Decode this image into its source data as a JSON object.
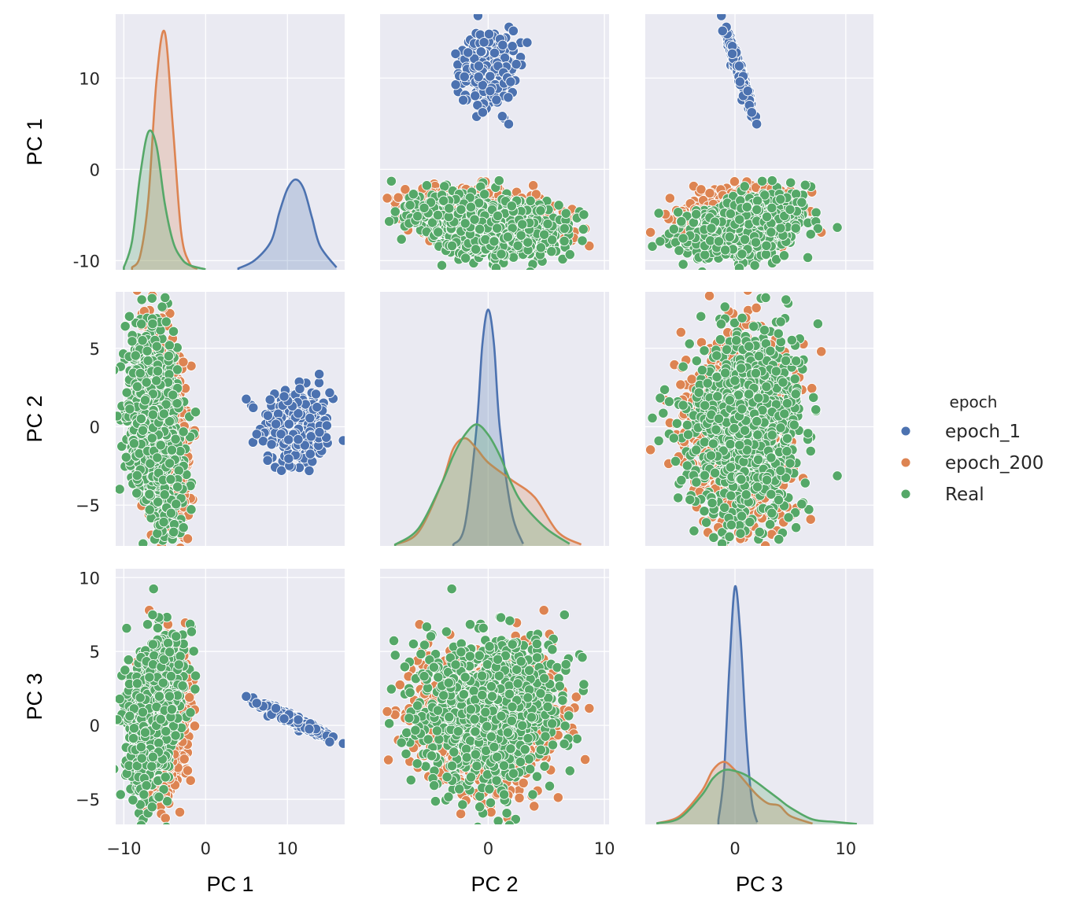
{
  "chart_data": {
    "type": "scatter",
    "subtype": "pairplot",
    "variables": [
      "PC 1",
      "PC 2",
      "PC 3"
    ],
    "axis_ticks": {
      "PC 1": {
        "values": [
          -10,
          0,
          10
        ],
        "labels": [
          "-10",
          "0",
          "10"
        ],
        "range": [
          -11,
          17
        ]
      },
      "PC 2": {
        "values": [
          -5,
          0,
          5
        ],
        "labels": [
          "−5",
          "0",
          "5"
        ],
        "range": [
          -7.6,
          8.6
        ]
      },
      "PC 3": {
        "values": [
          -5,
          0,
          5,
          10
        ],
        "labels": [
          "−5",
          "0",
          "5",
          "10"
        ],
        "range": [
          -6.7,
          10.6
        ]
      }
    },
    "x_axis_ticks": {
      "PC 1": {
        "values": [
          -10,
          0,
          10
        ],
        "labels": [
          "−10",
          "0",
          "10"
        ]
      },
      "PC 2": {
        "values": [
          0,
          10
        ],
        "labels": [
          "0",
          "10"
        ],
        "range": [
          -9.3,
          10.4
        ]
      },
      "PC 3": {
        "values": [
          0,
          10
        ],
        "labels": [
          "0",
          "10"
        ],
        "range": [
          -8.1,
          12.5
        ]
      }
    },
    "legend": {
      "title": "epoch",
      "placement": "right",
      "entries": [
        {
          "label": "epoch_1",
          "color": "#4c72b0"
        },
        {
          "label": "epoch_200",
          "color": "#dd8452"
        },
        {
          "label": "Real",
          "color": "#55a868"
        }
      ]
    },
    "series": [
      {
        "name": "epoch_1",
        "color": "#4c72b0",
        "count": 300,
        "mean": [
          11,
          0,
          0.3
        ],
        "sd": [
          2.1,
          1.2,
          0.7
        ],
        "kde": {
          "PC 1": {
            "x": [
              4,
              6,
              8,
              9,
              10,
              11,
              12,
              13,
              14,
              16
            ],
            "density": [
              0.003,
              0.02,
              0.06,
              0.12,
              0.17,
              0.19,
              0.17,
              0.11,
              0.05,
              0.005
            ]
          },
          "PC 2": {
            "x": [
              -3,
              -2,
              -1,
              -0.5,
              0,
              0.5,
              1,
              2,
              3
            ],
            "density": [
              0.002,
              0.03,
              0.17,
              0.29,
              0.34,
              0.29,
              0.17,
              0.05,
              0.003
            ]
          },
          "PC 3": {
            "x": [
              -1.5,
              -1,
              -0.5,
              0,
              0.5,
              1,
              1.5,
              2
            ],
            "density": [
              0.01,
              0.12,
              0.38,
              0.57,
              0.45,
              0.22,
              0.06,
              0.005
            ]
          }
        }
      },
      {
        "name": "epoch_200",
        "color": "#dd8452",
        "count": 1200,
        "mean": [
          -5.2,
          0,
          0
        ],
        "sd": [
          1.3,
          2.9,
          2.4
        ],
        "kde": {
          "PC 1": {
            "x": [
              -9,
              -8,
              -7,
              -6,
              -5,
              -4,
              -3,
              -2,
              -1
            ],
            "density": [
              0.005,
              0.03,
              0.15,
              0.4,
              0.5,
              0.3,
              0.08,
              0.015,
              0.002
            ]
          },
          "PC 2": {
            "x": [
              -8,
              -6,
              -4,
              -3,
              -2,
              -1,
              0,
              2,
              4,
              6,
              8
            ],
            "density": [
              0.002,
              0.02,
              0.09,
              0.14,
              0.155,
              0.14,
              0.12,
              0.095,
              0.07,
              0.02,
              0.002
            ]
          },
          "PC 3": {
            "x": [
              -7,
              -5,
              -3,
              -2,
              -1,
              0,
              1,
              2,
              3,
              4,
              5,
              7
            ],
            "density": [
              0.003,
              0.02,
              0.08,
              0.13,
              0.15,
              0.13,
              0.1,
              0.07,
              0.05,
              0.045,
              0.02,
              0.002
            ]
          }
        }
      },
      {
        "name": "Real",
        "color": "#55a868",
        "count": 1200,
        "mean": [
          -6.5,
          0,
          0.3
        ],
        "sd": [
          1.4,
          2.7,
          2.7
        ],
        "kde": {
          "PC 1": {
            "x": [
              -10,
              -9,
              -8,
              -7,
              -6,
              -5,
              -4,
              -3,
              -2,
              0
            ],
            "density": [
              0.005,
              0.06,
              0.2,
              0.29,
              0.26,
              0.14,
              0.06,
              0.025,
              0.01,
              0.001
            ]
          },
          "PC 2": {
            "x": [
              -8,
              -6,
              -4,
              -3,
              -2,
              -1,
              0,
              1,
              2,
              3,
              5,
              7
            ],
            "density": [
              0.002,
              0.025,
              0.09,
              0.13,
              0.16,
              0.175,
              0.16,
              0.13,
              0.09,
              0.06,
              0.025,
              0.003
            ]
          },
          "PC 3": {
            "x": [
              -7,
              -5,
              -3,
              -2,
              -1,
              0,
              1,
              2,
              3,
              4,
              5,
              7,
              9,
              11
            ],
            "density": [
              0.003,
              0.015,
              0.07,
              0.11,
              0.13,
              0.128,
              0.118,
              0.1,
              0.08,
              0.06,
              0.04,
              0.012,
              0.006,
              0.001
            ]
          }
        }
      }
    ]
  }
}
